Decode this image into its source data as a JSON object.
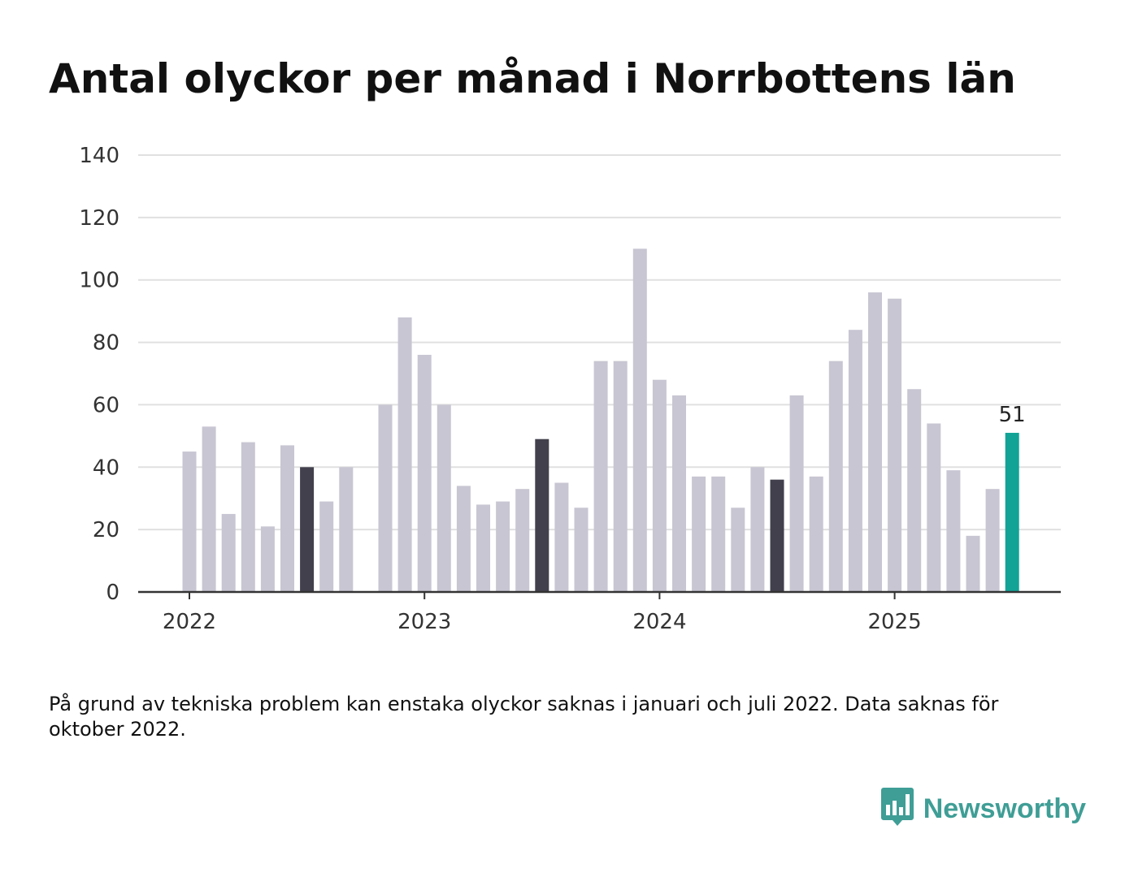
{
  "colors": {
    "bar": "#c8c6d2",
    "highlight_dark": "#41404c",
    "latest": "#12a396",
    "grid": "#e0e0e0",
    "axis": "#333333",
    "text": "#333333",
    "brand": "#3f9e96"
  },
  "brand": {
    "name": "Newsworthy",
    "icon": "bar-chart-speech-bubble-icon"
  },
  "footnote": "På grund av tekniska problem kan enstaka olyckor saknas i januari och juli 2022. Data saknas för oktober 2022.",
  "chart_data": {
    "type": "bar",
    "title": "Antal olyckor per månad i Norrbottens län",
    "xlabel": "",
    "ylabel": "",
    "ylim": [
      0,
      140
    ],
    "yticks": [
      0,
      20,
      40,
      60,
      80,
      100,
      120,
      140
    ],
    "grid": true,
    "x_tick_labels": [
      {
        "label": "2022",
        "month": "2022-01"
      },
      {
        "label": "2023",
        "month": "2023-01"
      },
      {
        "label": "2024",
        "month": "2024-01"
      },
      {
        "label": "2025",
        "month": "2025-01"
      }
    ],
    "months": [
      "2022-01",
      "2022-02",
      "2022-03",
      "2022-04",
      "2022-05",
      "2022-06",
      "2022-07",
      "2022-08",
      "2022-09",
      "2022-10",
      "2022-11",
      "2022-12",
      "2023-01",
      "2023-02",
      "2023-03",
      "2023-04",
      "2023-05",
      "2023-06",
      "2023-07",
      "2023-08",
      "2023-09",
      "2023-10",
      "2023-11",
      "2023-12",
      "2024-01",
      "2024-02",
      "2024-03",
      "2024-04",
      "2024-05",
      "2024-06",
      "2024-07",
      "2024-08",
      "2024-09",
      "2024-10",
      "2024-11",
      "2024-12",
      "2025-01",
      "2025-02",
      "2025-03",
      "2025-04",
      "2025-05",
      "2025-06",
      "2025-07"
    ],
    "values": [
      45,
      53,
      25,
      48,
      21,
      47,
      40,
      29,
      40,
      null,
      60,
      88,
      76,
      60,
      34,
      28,
      29,
      33,
      49,
      35,
      27,
      74,
      74,
      110,
      68,
      63,
      37,
      37,
      27,
      40,
      36,
      63,
      37,
      74,
      84,
      96,
      94,
      65,
      54,
      39,
      18,
      33,
      51
    ],
    "highlighted_dark": [
      "2022-07",
      "2023-07",
      "2024-07"
    ],
    "highlighted_latest": "2025-07",
    "data_labels": [
      {
        "month": "2025-07",
        "text": "51"
      }
    ]
  }
}
